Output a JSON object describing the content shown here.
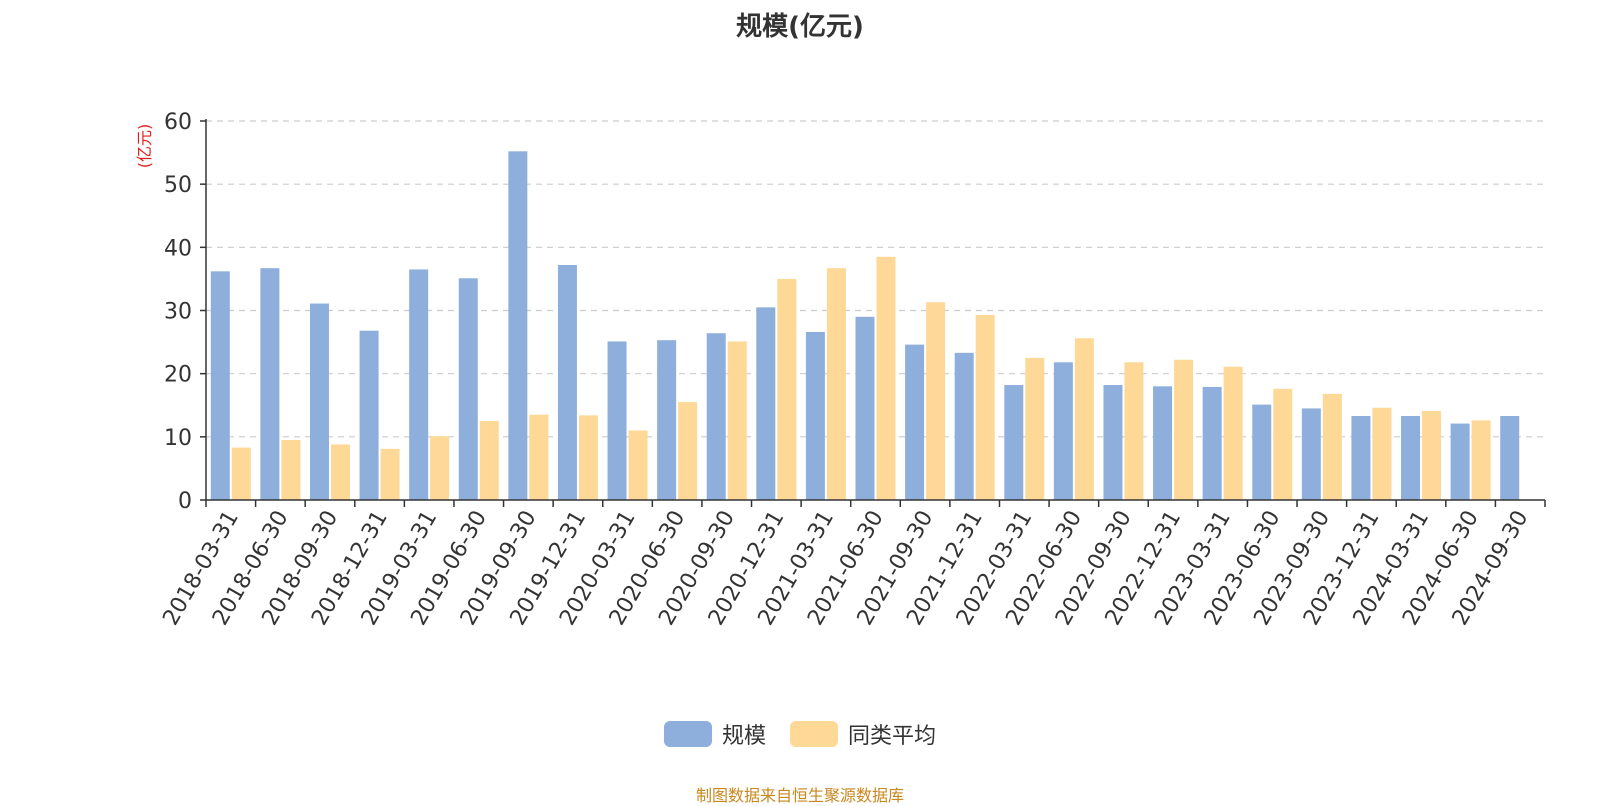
{
  "title": "规模(亿元)",
  "source": "制图数据来自恒生聚源数据库",
  "colors": {
    "scale": "#8eafdc",
    "avg": "#fdd896",
    "ylabel": "#e02020"
  },
  "chart_data": {
    "type": "bar",
    "ylabel": "(亿元)",
    "ylim": [
      0,
      60
    ],
    "yticks": [
      0,
      10,
      20,
      30,
      40,
      50,
      60
    ],
    "grid": true,
    "legend_position": "bottom-center",
    "categories": [
      "2018-03-31",
      "2018-06-30",
      "2018-09-30",
      "2018-12-31",
      "2019-03-31",
      "2019-06-30",
      "2019-09-30",
      "2019-12-31",
      "2020-03-31",
      "2020-06-30",
      "2020-09-30",
      "2020-12-31",
      "2021-03-31",
      "2021-06-30",
      "2021-09-30",
      "2021-12-31",
      "2022-03-31",
      "2022-06-30",
      "2022-09-30",
      "2022-12-31",
      "2023-03-31",
      "2023-06-30",
      "2023-09-30",
      "2023-12-31",
      "2024-03-31",
      "2024-06-30",
      "2024-09-30"
    ],
    "series": [
      {
        "name": "规模",
        "values": [
          36.2,
          36.7,
          31.1,
          26.8,
          36.5,
          35.1,
          55.2,
          37.2,
          25.1,
          25.3,
          26.4,
          30.5,
          26.6,
          29.0,
          24.6,
          23.3,
          18.2,
          21.8,
          18.2,
          18.0,
          17.9,
          15.1,
          14.5,
          13.3,
          13.3,
          12.1,
          13.3
        ]
      },
      {
        "name": "同类平均",
        "values": [
          8.3,
          9.5,
          8.8,
          8.1,
          10.1,
          12.5,
          13.5,
          13.4,
          11.0,
          15.5,
          25.1,
          35.0,
          36.7,
          38.5,
          31.3,
          29.3,
          22.5,
          25.6,
          21.8,
          22.2,
          21.1,
          17.6,
          16.8,
          14.6,
          14.1,
          12.6,
          null
        ]
      }
    ]
  }
}
